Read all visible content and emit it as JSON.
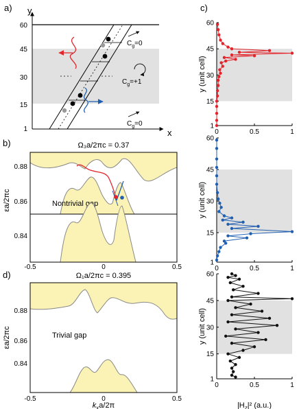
{
  "panels": {
    "a": {
      "label": "a)",
      "y_axis": "y",
      "x_axis": "x",
      "ticks": [
        "1",
        "15",
        "30",
        "45",
        "60"
      ],
      "cg_top": "C",
      "cg_top_sub": "g",
      "cg_top_val": "=0",
      "cg_mid": "C",
      "cg_mid_sub": "g",
      "cg_mid_val": "=+1",
      "cg_bot": "C",
      "cg_bot_sub": "g",
      "cg_bot_val": "=0"
    },
    "b": {
      "label": "b)",
      "title": "Ω₃a/2πc = 0.37",
      "ylabel": "εa/2πc",
      "annotation": "Nontrivial gap",
      "yticks": [
        "0.88",
        "0.86",
        "0.84"
      ],
      "xticks": [
        "-0.5",
        "0",
        "0.5"
      ]
    },
    "c": {
      "label": "c)",
      "ylabel": "y (unit cell)",
      "xlabel": "|H",
      "xlabel_sub": "z",
      "xlabel_rest": "|² (a.u.)",
      "yticks": [
        "60",
        "45",
        "30",
        "15",
        "1"
      ],
      "xticks": [
        "0",
        "0.5",
        "1"
      ]
    },
    "d": {
      "label": "d)",
      "title": "Ω₁a/2πc = 0.395",
      "ylabel": "εa/2πc",
      "annotation": "Trivial gap",
      "xlabel": "k",
      "xlabel_sub": "x",
      "xlabel_rest": "a/2π",
      "yticks": [
        "0.88",
        "0.86",
        "0.84"
      ],
      "xticks": [
        "-0.5",
        "0",
        "0.5"
      ]
    }
  },
  "colors": {
    "band_fill": "#fbf3b5",
    "band_edge": "#888888",
    "gray_band": "#e1e1e1",
    "red": "#e3242b",
    "blue": "#1f5fb0",
    "black": "#111111"
  },
  "chart_data": [
    {
      "type": "line",
      "panel": "c-top",
      "ylabel": "y (unit cell)",
      "xlim": [
        0,
        1
      ],
      "ylim": [
        1,
        60
      ],
      "shaded_y": [
        15,
        45
      ],
      "series": [
        {
          "color": "red",
          "points": [
            [
              0,
              1
            ],
            [
              0,
              4
            ],
            [
              0,
              8
            ],
            [
              0,
              12
            ],
            [
              0,
              15
            ],
            [
              0.01,
              18
            ],
            [
              0.01,
              21
            ],
            [
              0.02,
              24
            ],
            [
              0.02,
              27
            ],
            [
              0.03,
              29
            ],
            [
              0.05,
              31
            ],
            [
              0.04,
              33
            ],
            [
              0.08,
              35
            ],
            [
              0.06,
              37
            ],
            [
              0.12,
              38
            ],
            [
              0.25,
              39
            ],
            [
              0.1,
              40
            ],
            [
              0.5,
              41
            ],
            [
              0.2,
              41.5
            ],
            [
              1.0,
              42.5
            ],
            [
              0.3,
              43
            ],
            [
              0.7,
              44
            ],
            [
              0.2,
              45
            ],
            [
              0.15,
              46
            ],
            [
              0.08,
              48
            ],
            [
              0.05,
              50
            ],
            [
              0.03,
              53
            ],
            [
              0.02,
              56
            ],
            [
              0.01,
              59
            ]
          ]
        }
      ]
    },
    {
      "type": "line",
      "panel": "c-mid",
      "ylabel": "y (unit cell)",
      "xlim": [
        0,
        1
      ],
      "ylim": [
        1,
        60
      ],
      "shaded_y": [
        15,
        45
      ],
      "series": [
        {
          "color": "blue",
          "points": [
            [
              0,
              59
            ],
            [
              0,
              55
            ],
            [
              0,
              50
            ],
            [
              0,
              46
            ],
            [
              0,
              42
            ],
            [
              0,
              38
            ],
            [
              0.01,
              34
            ],
            [
              0.02,
              31
            ],
            [
              0.04,
              29
            ],
            [
              0.06,
              27
            ],
            [
              0.03,
              25
            ],
            [
              0.1,
              23
            ],
            [
              0.2,
              22
            ],
            [
              0.08,
              21
            ],
            [
              0.35,
              20
            ],
            [
              0.15,
              19
            ],
            [
              0.55,
              18
            ],
            [
              0.2,
              17
            ],
            [
              1.0,
              15.5
            ],
            [
              0.45,
              14.5
            ],
            [
              0.15,
              13.5
            ],
            [
              0.4,
              12.5
            ],
            [
              0.1,
              11
            ],
            [
              0.12,
              10
            ],
            [
              0.05,
              8
            ],
            [
              0.03,
              6
            ],
            [
              0.01,
              4
            ],
            [
              0,
              2
            ]
          ]
        }
      ]
    },
    {
      "type": "line",
      "panel": "c-bot",
      "ylabel": "y (unit cell)",
      "xlabel": "|Hz|² (a.u.)",
      "xlim": [
        0,
        1
      ],
      "ylim": [
        1,
        60
      ],
      "shaded_y": [
        15,
        45
      ],
      "series": [
        {
          "color": "black",
          "points": [
            [
              0.2,
              60
            ],
            [
              0.25,
              59
            ],
            [
              0.15,
              58
            ],
            [
              0.3,
              57
            ],
            [
              0.18,
              55
            ],
            [
              0.35,
              53
            ],
            [
              0.22,
              51
            ],
            [
              0.55,
              49
            ],
            [
              0.2,
              47
            ],
            [
              1.0,
              46
            ],
            [
              0.15,
              45
            ],
            [
              0.45,
              43
            ],
            [
              0.25,
              41
            ],
            [
              0.6,
              39
            ],
            [
              0.2,
              37
            ],
            [
              0.7,
              35
            ],
            [
              0.15,
              33
            ],
            [
              0.8,
              31
            ],
            [
              0.25,
              29
            ],
            [
              0.55,
              27
            ],
            [
              0.12,
              25
            ],
            [
              0.65,
              23
            ],
            [
              0.2,
              21
            ],
            [
              0.5,
              19
            ],
            [
              0.35,
              17
            ],
            [
              0.15,
              15
            ],
            [
              0.3,
              13
            ],
            [
              0.18,
              11
            ],
            [
              0.25,
              9
            ],
            [
              0.2,
              7
            ],
            [
              0.22,
              5
            ],
            [
              0.2,
              3
            ],
            [
              0.25,
              2
            ]
          ]
        }
      ]
    }
  ]
}
